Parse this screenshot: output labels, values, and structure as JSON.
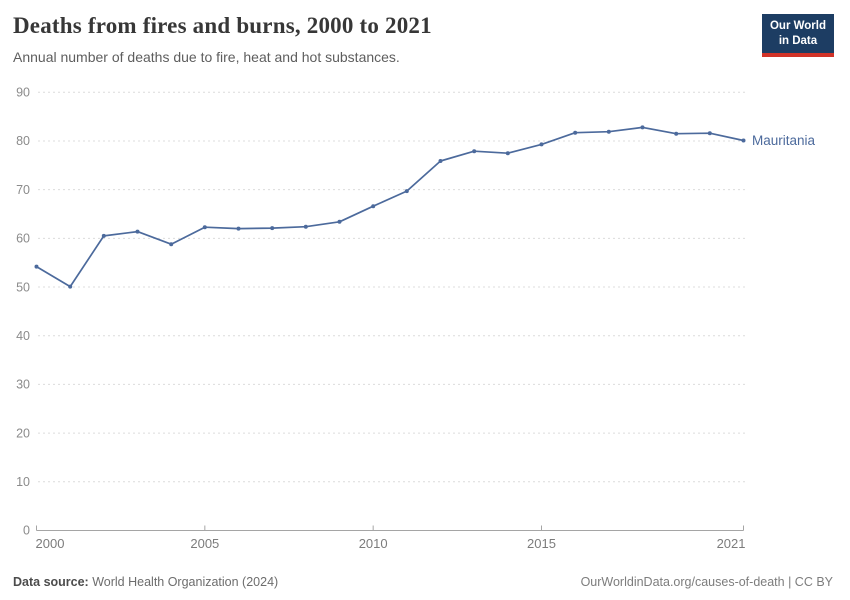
{
  "header": {
    "logo": {
      "line1": "Our World",
      "line2": "in Data",
      "bg_color": "#1d3d63",
      "accent_color": "#d13328"
    }
  },
  "footer": {
    "data_source_label": "Data source:",
    "data_source_text": "World Health Organization (2024)",
    "attribution": "OurWorldinData.org/causes-of-death | CC BY"
  },
  "chart_data": {
    "type": "line",
    "title": "Deaths from fires and burns, 2000 to 2021",
    "subtitle": "Annual number of deaths due to fire, heat and hot substances.",
    "x": [
      2000,
      2001,
      2002,
      2003,
      2004,
      2005,
      2006,
      2007,
      2008,
      2009,
      2010,
      2011,
      2012,
      2013,
      2014,
      2015,
      2016,
      2017,
      2018,
      2019,
      2020,
      2021
    ],
    "series": [
      {
        "name": "Mauritania",
        "color": "#4c6a9c",
        "values": [
          54.2,
          50.1,
          60.5,
          61.4,
          58.8,
          62.3,
          62.0,
          62.1,
          62.4,
          63.4,
          66.6,
          69.7,
          75.9,
          77.9,
          77.5,
          79.3,
          81.7,
          81.9,
          82.8,
          81.5,
          81.6,
          80.1
        ]
      }
    ],
    "xlabel": "",
    "ylabel": "",
    "ylim": [
      0,
      90
    ],
    "yticks": [
      0,
      10,
      20,
      30,
      40,
      50,
      60,
      70,
      80,
      90
    ],
    "xticks": [
      2000,
      2005,
      2010,
      2015,
      2021
    ],
    "grid": "horizontal-dashed",
    "legend_position": "line-end-label",
    "grid_color": "#dcdcdc",
    "axis_color": "#a5a5a5"
  }
}
